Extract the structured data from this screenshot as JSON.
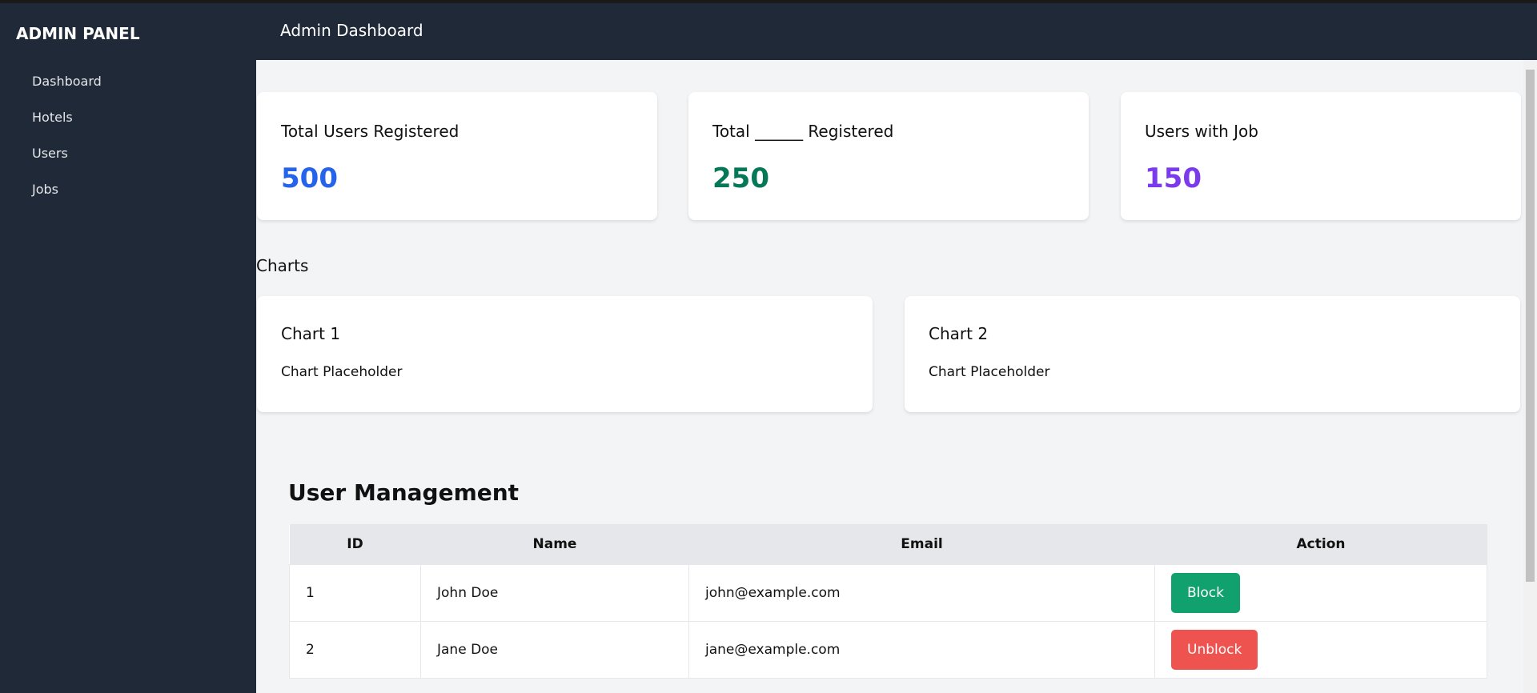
{
  "sidebar": {
    "brand": "ADMIN PANEL",
    "items": [
      {
        "label": "Dashboard"
      },
      {
        "label": "Hotels"
      },
      {
        "label": "Users"
      },
      {
        "label": "Jobs"
      }
    ]
  },
  "header": {
    "title": "Admin Dashboard"
  },
  "stats": [
    {
      "title": "Total Users Registered",
      "value": "500",
      "color": "#2563eb"
    },
    {
      "title": "Total ______ Registered",
      "value": "250",
      "color": "#047857"
    },
    {
      "title": "Users with Job",
      "value": "150",
      "color": "#7c3aed"
    }
  ],
  "charts": {
    "section": "Charts",
    "items": [
      {
        "title": "Chart 1",
        "placeholder": "Chart Placeholder"
      },
      {
        "title": "Chart 2",
        "placeholder": "Chart Placeholder"
      }
    ]
  },
  "users": {
    "title": "User Management",
    "columns": [
      "ID",
      "Name",
      "Email",
      "Action"
    ],
    "rows": [
      {
        "id": "1",
        "name": "John Doe",
        "email": "john@example.com",
        "action": "Block",
        "color": "#10a16f"
      },
      {
        "id": "2",
        "name": "Jane Doe",
        "email": "jane@example.com",
        "action": "Unblock",
        "color": "#ef5350"
      }
    ]
  }
}
